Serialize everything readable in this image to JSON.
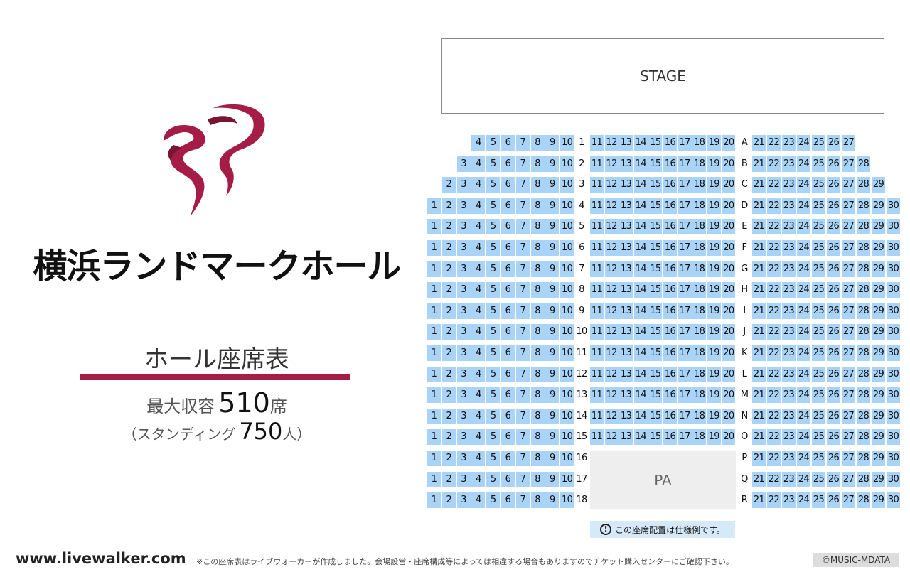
{
  "venue": {
    "name": "横浜ランドマークホール",
    "subtitle": "ホール座席表",
    "capacity_label": "最大収容",
    "capacity_number": "510",
    "capacity_unit": "席",
    "standing_open": "（スタンディング",
    "standing_number": "750",
    "standing_close": "人）",
    "logo_icon": "ribbon-logo-icon",
    "brand_color": "#a51d47"
  },
  "stage": {
    "label": "STAGE"
  },
  "pa": {
    "label": "PA"
  },
  "seat_color": "#a9d4f7",
  "rows": [
    {
      "num": "1",
      "letter": "A",
      "left": [
        4,
        10
      ],
      "right": [
        21,
        27
      ]
    },
    {
      "num": "2",
      "letter": "B",
      "left": [
        3,
        10
      ],
      "right": [
        21,
        28
      ]
    },
    {
      "num": "3",
      "letter": "C",
      "left": [
        2,
        10
      ],
      "right": [
        21,
        29
      ]
    },
    {
      "num": "4",
      "letter": "D",
      "left": [
        1,
        10
      ],
      "right": [
        21,
        30
      ]
    },
    {
      "num": "5",
      "letter": "E",
      "left": [
        1,
        10
      ],
      "right": [
        21,
        30
      ]
    },
    {
      "num": "6",
      "letter": "F",
      "left": [
        1,
        10
      ],
      "right": [
        21,
        30
      ]
    },
    {
      "num": "7",
      "letter": "G",
      "left": [
        1,
        10
      ],
      "right": [
        21,
        30
      ]
    },
    {
      "num": "8",
      "letter": "H",
      "left": [
        1,
        10
      ],
      "right": [
        21,
        30
      ]
    },
    {
      "num": "9",
      "letter": "I",
      "left": [
        1,
        10
      ],
      "right": [
        21,
        30
      ]
    },
    {
      "num": "10",
      "letter": "J",
      "left": [
        1,
        10
      ],
      "right": [
        21,
        30
      ]
    },
    {
      "num": "11",
      "letter": "K",
      "left": [
        1,
        10
      ],
      "right": [
        21,
        30
      ]
    },
    {
      "num": "12",
      "letter": "L",
      "left": [
        1,
        10
      ],
      "right": [
        21,
        30
      ]
    },
    {
      "num": "13",
      "letter": "M",
      "left": [
        1,
        10
      ],
      "right": [
        21,
        30
      ]
    },
    {
      "num": "14",
      "letter": "N",
      "left": [
        1,
        10
      ],
      "right": [
        21,
        30
      ]
    },
    {
      "num": "15",
      "letter": "O",
      "left": [
        1,
        10
      ],
      "right": [
        21,
        30
      ]
    },
    {
      "num": "16",
      "letter": "P",
      "left": [
        1,
        10
      ],
      "right": [
        21,
        30
      ]
    },
    {
      "num": "17",
      "letter": "Q",
      "left": [
        1,
        10
      ],
      "right": [
        21,
        30
      ]
    },
    {
      "num": "18",
      "letter": "R",
      "left": [
        1,
        10
      ],
      "right": [
        21,
        30
      ]
    }
  ],
  "center_rows": 15,
  "center_range": [
    11,
    20
  ],
  "note": {
    "icon": "info-icon",
    "text": "この座席配置は仕様例です。"
  },
  "footer": {
    "url": "www.livewalker.com",
    "disclaimer": "※この座席表はライブウォーカーが作成しました。会場設営・座席構成等によっては相違する場合もありますのでチケット購入センターにご確認下さい。",
    "copyright": "©MUSIC-MDATA"
  }
}
